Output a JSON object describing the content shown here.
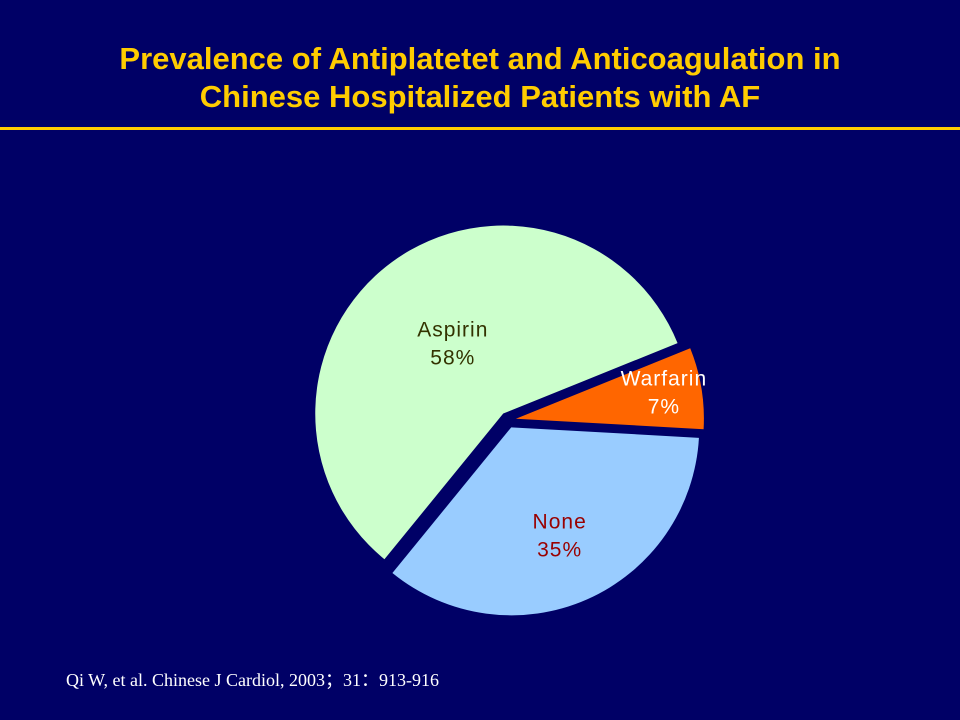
{
  "chart_data": {
    "type": "pie",
    "title": "Prevalence of Antiplatetet and Anticoagulation in\nChinese Hospitalized Patients with AF",
    "categories": [
      "Warfarin",
      "None",
      "Aspirin"
    ],
    "values": [
      7,
      35,
      58
    ],
    "value_labels": [
      "7%",
      "35%",
      "58%"
    ],
    "colors": [
      "#ff6600",
      "#99ccff",
      "#ccffcc"
    ],
    "label_colors": [
      "#ffffff",
      "#990000",
      "#333300"
    ],
    "source": "Qi W, et al. Chinese J Cardiol, 2003；31：913-916"
  }
}
